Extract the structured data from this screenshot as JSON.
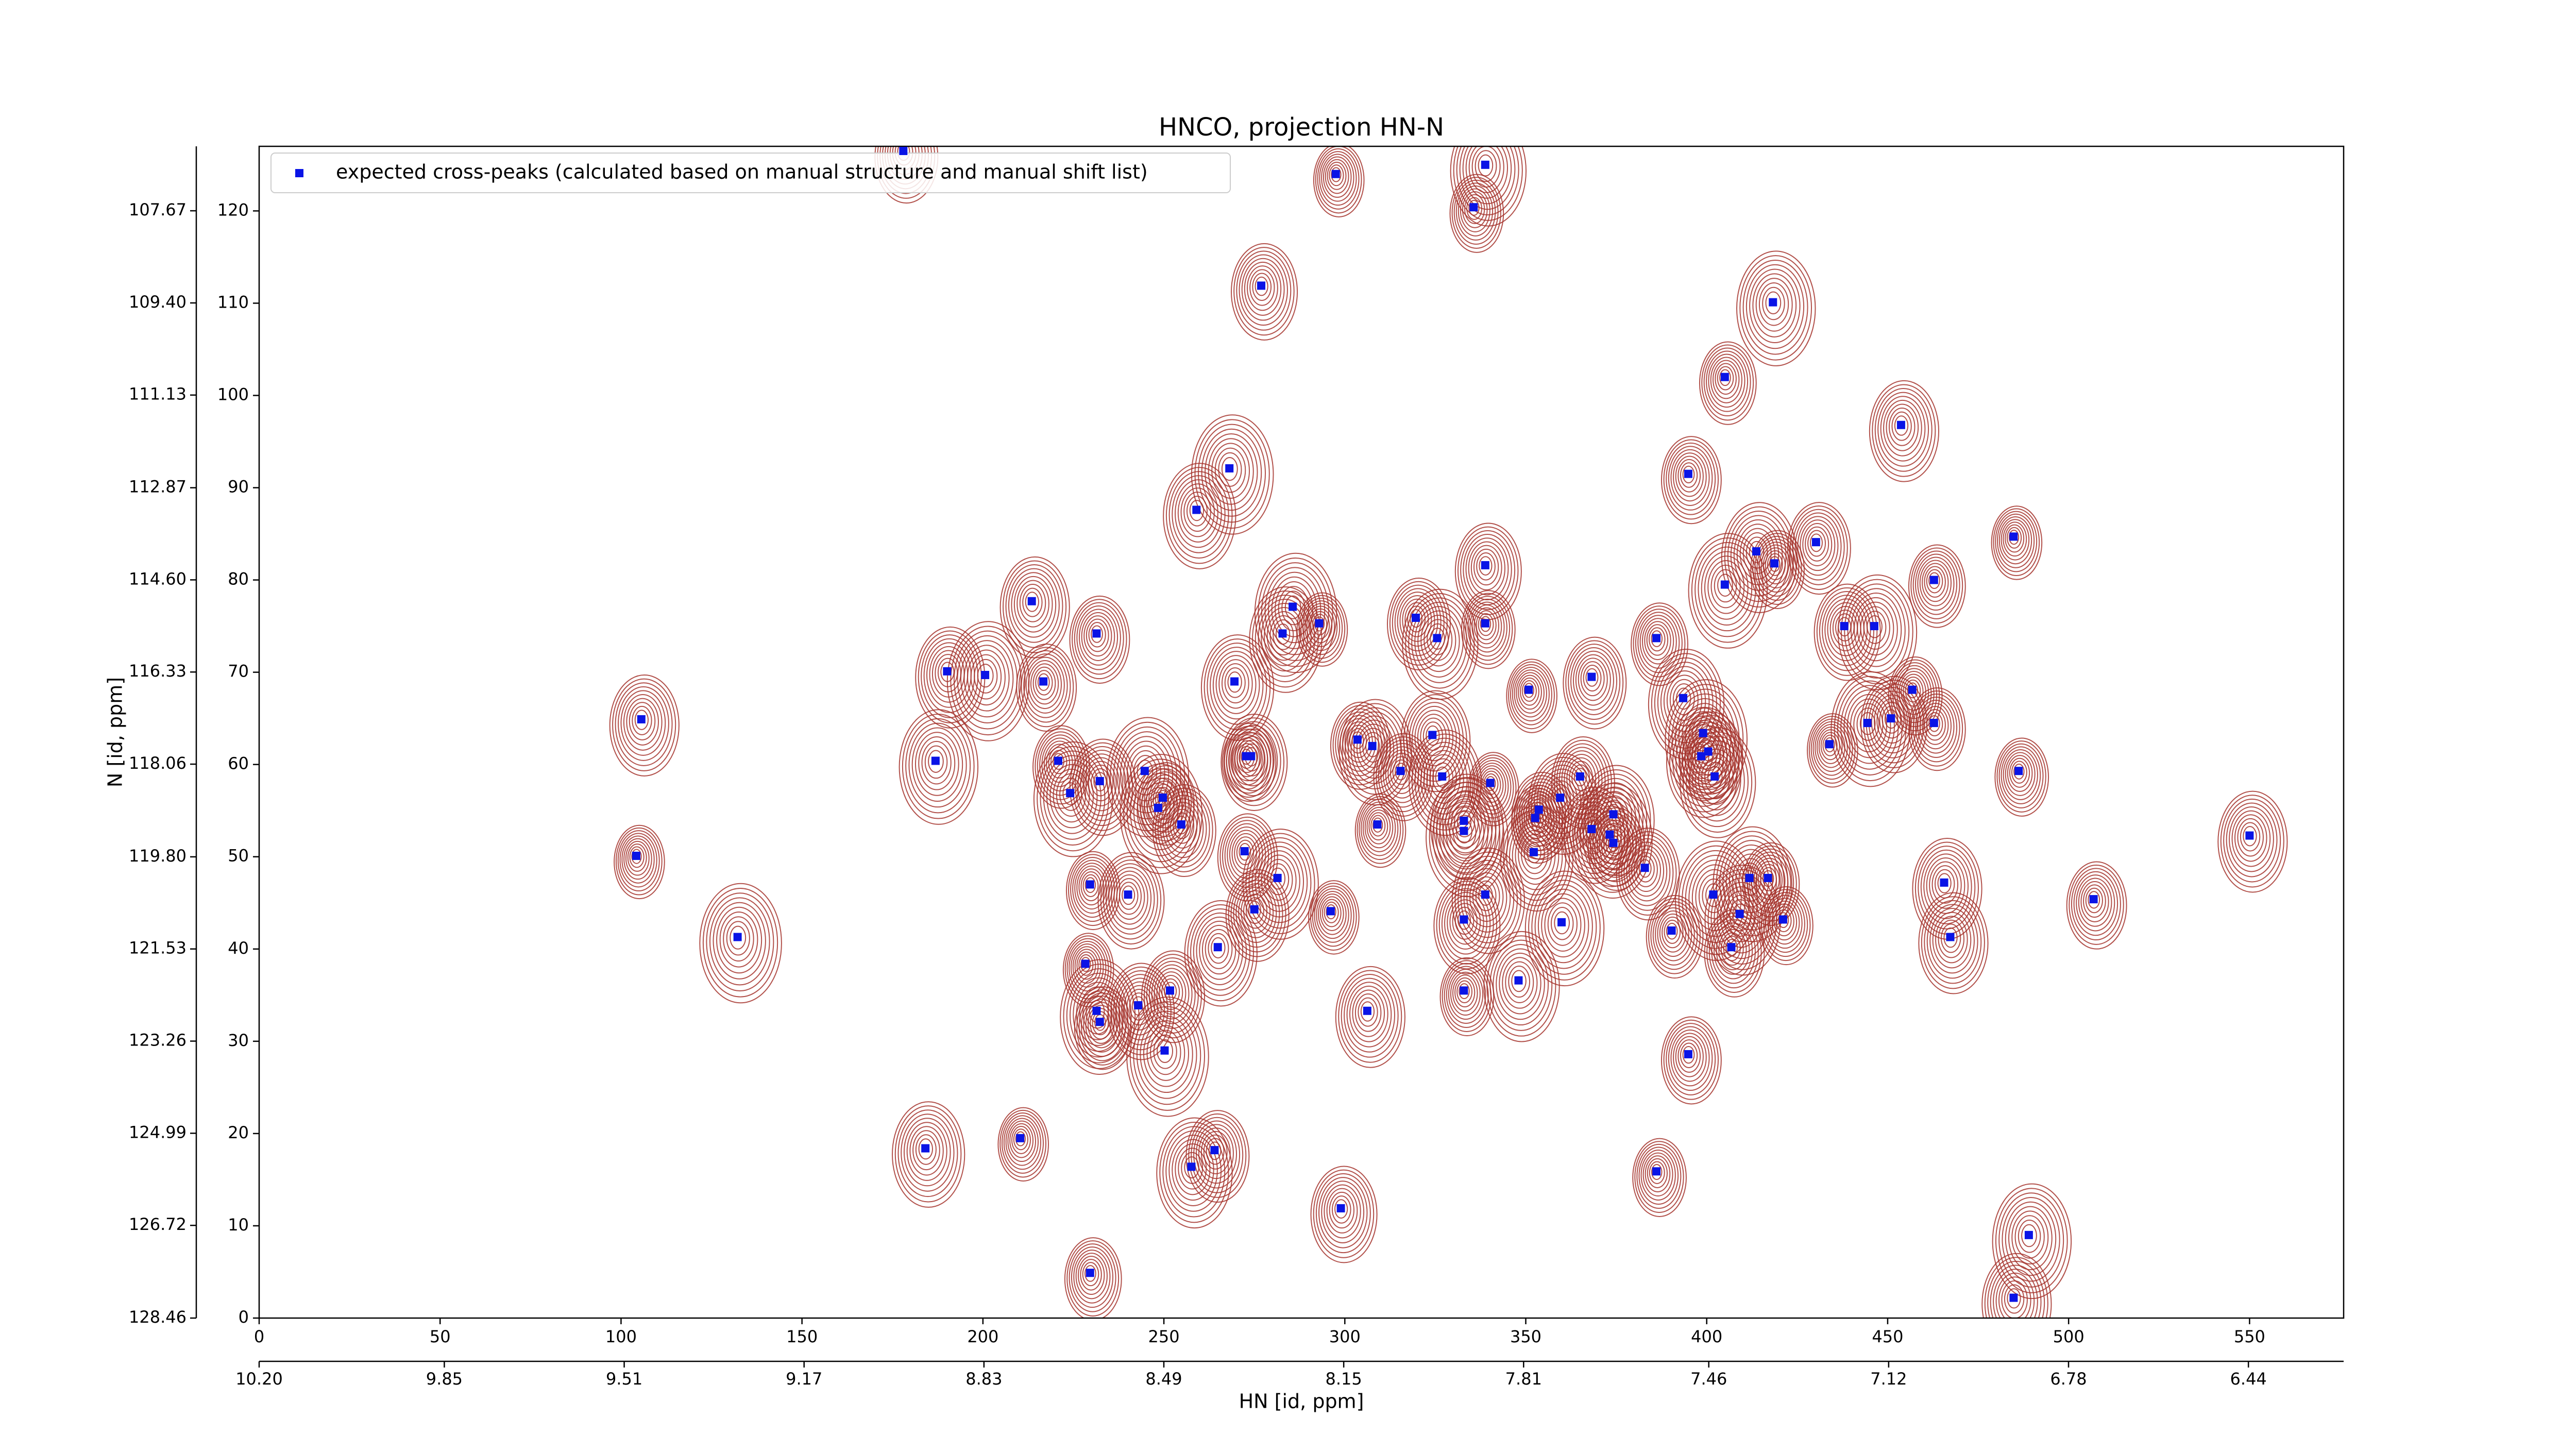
{
  "chart_data": {
    "type": "scatter",
    "title": "HNCO, projection HN-N",
    "xlabel": "HN [id, ppm]",
    "ylabel": "N [id, ppm]",
    "xlim": [
      0,
      576
    ],
    "ylim": [
      0,
      127
    ],
    "xticks": [
      0,
      50,
      100,
      150,
      200,
      250,
      300,
      350,
      400,
      450,
      500,
      550
    ],
    "yticks": [
      0,
      10,
      20,
      30,
      40,
      50,
      60,
      70,
      80,
      90,
      100,
      110,
      120
    ],
    "x2lim": [
      10.2,
      6.26
    ],
    "x2ticks": [
      {
        "value": 10.2,
        "label": "10.20"
      },
      9.85,
      9.51,
      9.17,
      8.83,
      8.49,
      8.15,
      7.81,
      7.46,
      7.12,
      6.78,
      6.44
    ],
    "y2lim": [
      128.46,
      106.46
    ],
    "y2ticks": [
      128.46,
      126.72,
      124.99,
      123.26,
      121.53,
      {
        "value": 119.8,
        "label": "119.80"
      },
      118.06,
      116.33,
      {
        "value": 114.6,
        "label": "114.60"
      },
      112.87,
      111.13,
      {
        "value": 109.4,
        "label": "109.40"
      },
      107.67
    ],
    "legend": "upper left",
    "contour_color": "#a5332c",
    "x": [
      297.5,
      178,
      338.8,
      335.6,
      276.9,
      418.3,
      405,
      453.7,
      268.1,
      394.9,
      259,
      484.8,
      430.2,
      413.7,
      418.7,
      338.8,
      405,
      462.8,
      213.5,
      285.6,
      231.4,
      282.8,
      292.9,
      319.6,
      325.5,
      338.8,
      438,
      446.3,
      386.1,
      190.1,
      200.6,
      216.7,
      269.5,
      350.8,
      368.2,
      393.5,
      456.8,
      450.9,
      444.4,
      462.8,
      105.6,
      399,
      303.5,
      307.6,
      433.9,
      400.4,
      398.5,
      272.7,
      274.1,
      186.9,
      220.8,
      324.2,
      244.7,
      315.4,
      326.9,
      340.2,
      365,
      402.2,
      486.2,
      232.3,
      224.1,
      249.7,
      359.5,
      248.4,
      353.6,
      332.9,
      309,
      254.8,
      374.2,
      352.6,
      368.2,
      373.2,
      374.2,
      550,
      332.9,
      272.3,
      352.2,
      104.2,
      382.9,
      281.4,
      229.6,
      240.1,
      411.8,
      416.9,
      465.6,
      401.8,
      506.9,
      338.8,
      296.1,
      275,
      409.1,
      421.1,
      332.9,
      359.9,
      390.3,
      467.3,
      132.2,
      406.8,
      264.9,
      228.3,
      251.7,
      348,
      332.9,
      242.9,
      231.4,
      232.3,
      306.2,
      250.2,
      394.9,
      184.1,
      210.3,
      264,
      257.6,
      386.1,
      298.9,
      489,
      229.6,
      484.8
    ],
    "series": [
      {
        "name": "expected cross-peaks (calculated based on manual structure and manual shift list)",
        "color": "#0a14e6",
        "values": [
          124,
          126.5,
          125,
          120.4,
          111.9,
          110.1,
          102,
          96.8,
          92.1,
          91.5,
          87.6,
          84.7,
          84.1,
          83.1,
          81.8,
          81.6,
          79.5,
          80,
          77.7,
          77.1,
          74.2,
          74.2,
          75.3,
          75.9,
          73.7,
          75.3,
          75,
          75,
          73.7,
          70.1,
          69.7,
          69,
          69,
          68.1,
          69.5,
          67.2,
          68.1,
          65,
          64.5,
          64.5,
          64.9,
          63.4,
          62.7,
          62,
          62.2,
          61.4,
          60.9,
          60.9,
          60.9,
          60.4,
          60.4,
          63.2,
          59.3,
          59.3,
          58.7,
          58,
          58.7,
          58.7,
          59.3,
          58.2,
          56.9,
          56.4,
          56.4,
          55.3,
          55.1,
          53.9,
          53.5,
          53.5,
          54.6,
          54.2,
          53,
          52.4,
          51.5,
          52.3,
          52.8,
          50.6,
          50.5,
          50.1,
          48.8,
          47.7,
          47,
          45.9,
          47.7,
          47.7,
          47.2,
          45.9,
          45.4,
          45.9,
          44.1,
          44.3,
          43.8,
          43.2,
          43.2,
          42.9,
          42,
          41.3,
          41.3,
          40.2,
          40.2,
          38.4,
          35.5,
          36.6,
          35.5,
          33.9,
          33.3,
          32.1,
          33.3,
          29,
          28.6,
          18.4,
          19.5,
          18.2,
          16.4,
          15.9,
          11.9,
          9,
          4.9,
          2.2
        ]
      }
    ]
  }
}
